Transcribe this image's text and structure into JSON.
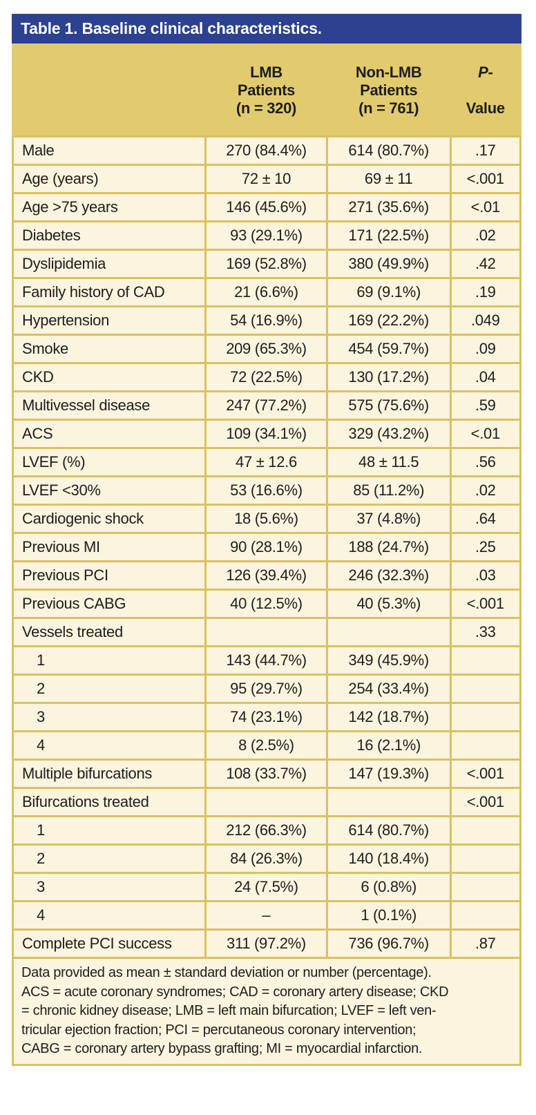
{
  "colors": {
    "blue": "#2c418f",
    "band": "#e2cb6e",
    "border": "#d8c262",
    "cream": "#fbf4df",
    "text": "#1d1d1b",
    "title_text": "#ffffff"
  },
  "table": {
    "title": "Table 1. Baseline clinical characteristics.",
    "header": {
      "col_label": "",
      "col_lmb": "LMB\nPatients\n(n = 320)",
      "col_nonlmb": "Non-LMB\nPatients\n(n = 761)",
      "p_italic": "P",
      "p_dash": "-",
      "p_value_word": "Value"
    },
    "rows": [
      {
        "label": "Male",
        "lmb": "270 (84.4%)",
        "nonlmb": "614 (80.7%)",
        "p": ".17",
        "indent": false
      },
      {
        "label": "Age (years)",
        "lmb": "72 ± 10",
        "nonlmb": "69 ± 11",
        "p": "<.001",
        "indent": false
      },
      {
        "label": "Age >75 years",
        "lmb": "146 (45.6%)",
        "nonlmb": "271 (35.6%)",
        "p": "<.01",
        "indent": false
      },
      {
        "label": "Diabetes",
        "lmb": "93 (29.1%)",
        "nonlmb": "171 (22.5%)",
        "p": ".02",
        "indent": false
      },
      {
        "label": "Dyslipidemia",
        "lmb": "169 (52.8%)",
        "nonlmb": "380 (49.9%)",
        "p": ".42",
        "indent": false
      },
      {
        "label": "Family history of CAD",
        "lmb": "21 (6.6%)",
        "nonlmb": "69 (9.1%)",
        "p": ".19",
        "indent": false
      },
      {
        "label": "Hypertension",
        "lmb": "54 (16.9%)",
        "nonlmb": "169 (22.2%)",
        "p": ".049",
        "indent": false
      },
      {
        "label": "Smoke",
        "lmb": "209 (65.3%)",
        "nonlmb": "454 (59.7%)",
        "p": ".09",
        "indent": false
      },
      {
        "label": "CKD",
        "lmb": "72 (22.5%)",
        "nonlmb": "130 (17.2%)",
        "p": ".04",
        "indent": false
      },
      {
        "label": "Multivessel disease",
        "lmb": "247 (77.2%)",
        "nonlmb": "575 (75.6%)",
        "p": ".59",
        "indent": false
      },
      {
        "label": "ACS",
        "lmb": "109 (34.1%)",
        "nonlmb": "329 (43.2%)",
        "p": "<.01",
        "indent": false
      },
      {
        "label": "LVEF (%)",
        "lmb": "47 ± 12.6",
        "nonlmb": "48 ± 11.5",
        "p": ".56",
        "indent": false
      },
      {
        "label": "LVEF <30%",
        "lmb": "53 (16.6%)",
        "nonlmb": "85 (11.2%)",
        "p": ".02",
        "indent": false
      },
      {
        "label": "Cardiogenic shock",
        "lmb": "18 (5.6%)",
        "nonlmb": "37 (4.8%)",
        "p": ".64",
        "indent": false
      },
      {
        "label": "Previous MI",
        "lmb": "90 (28.1%)",
        "nonlmb": "188 (24.7%)",
        "p": ".25",
        "indent": false
      },
      {
        "label": "Previous PCI",
        "lmb": "126 (39.4%)",
        "nonlmb": "246 (32.3%)",
        "p": ".03",
        "indent": false
      },
      {
        "label": "Previous CABG",
        "lmb": "40 (12.5%)",
        "nonlmb": "40 (5.3%)",
        "p": "<.001",
        "indent": false
      },
      {
        "label": "Vessels treated",
        "lmb": "",
        "nonlmb": "",
        "p": ".33",
        "indent": false
      },
      {
        "label": "1",
        "lmb": "143 (44.7%)",
        "nonlmb": "349 (45.9%)",
        "p": "",
        "indent": true
      },
      {
        "label": "2",
        "lmb": "95 (29.7%)",
        "nonlmb": "254 (33.4%)",
        "p": "",
        "indent": true
      },
      {
        "label": "3",
        "lmb": "74 (23.1%)",
        "nonlmb": "142 (18.7%)",
        "p": "",
        "indent": true
      },
      {
        "label": "4",
        "lmb": "8 (2.5%)",
        "nonlmb": "16 (2.1%)",
        "p": "",
        "indent": true
      },
      {
        "label": "Multiple bifurcations",
        "lmb": "108 (33.7%)",
        "nonlmb": "147 (19.3%)",
        "p": "<.001",
        "indent": false
      },
      {
        "label": "Bifurcations treated",
        "lmb": "",
        "nonlmb": "",
        "p": "<.001",
        "indent": false
      },
      {
        "label": "1",
        "lmb": "212 (66.3%)",
        "nonlmb": "614 (80.7%)",
        "p": "",
        "indent": true
      },
      {
        "label": "2",
        "lmb": "84 (26.3%)",
        "nonlmb": "140 (18.4%)",
        "p": "",
        "indent": true
      },
      {
        "label": "3",
        "lmb": "24 (7.5%)",
        "nonlmb": "6 (0.8%)",
        "p": "",
        "indent": true
      },
      {
        "label": "4",
        "lmb": "–",
        "nonlmb": "1 (0.1%)",
        "p": "",
        "indent": true
      },
      {
        "label": "Complete PCI success",
        "lmb": "311 (97.2%)",
        "nonlmb": "736 (96.7%)",
        "p": ".87",
        "indent": false
      }
    ],
    "footnote": "Data provided as mean ± standard deviation or number (percentage).\nACS = acute coronary syndromes; CAD = coronary artery disease; CKD\n= chronic kidney disease; LMB = left main bifurcation; LVEF = left ven-\ntricular ejection fraction; PCI = percutaneous coronary intervention;\nCABG = coronary artery bypass grafting; MI = myocardial infarction."
  }
}
